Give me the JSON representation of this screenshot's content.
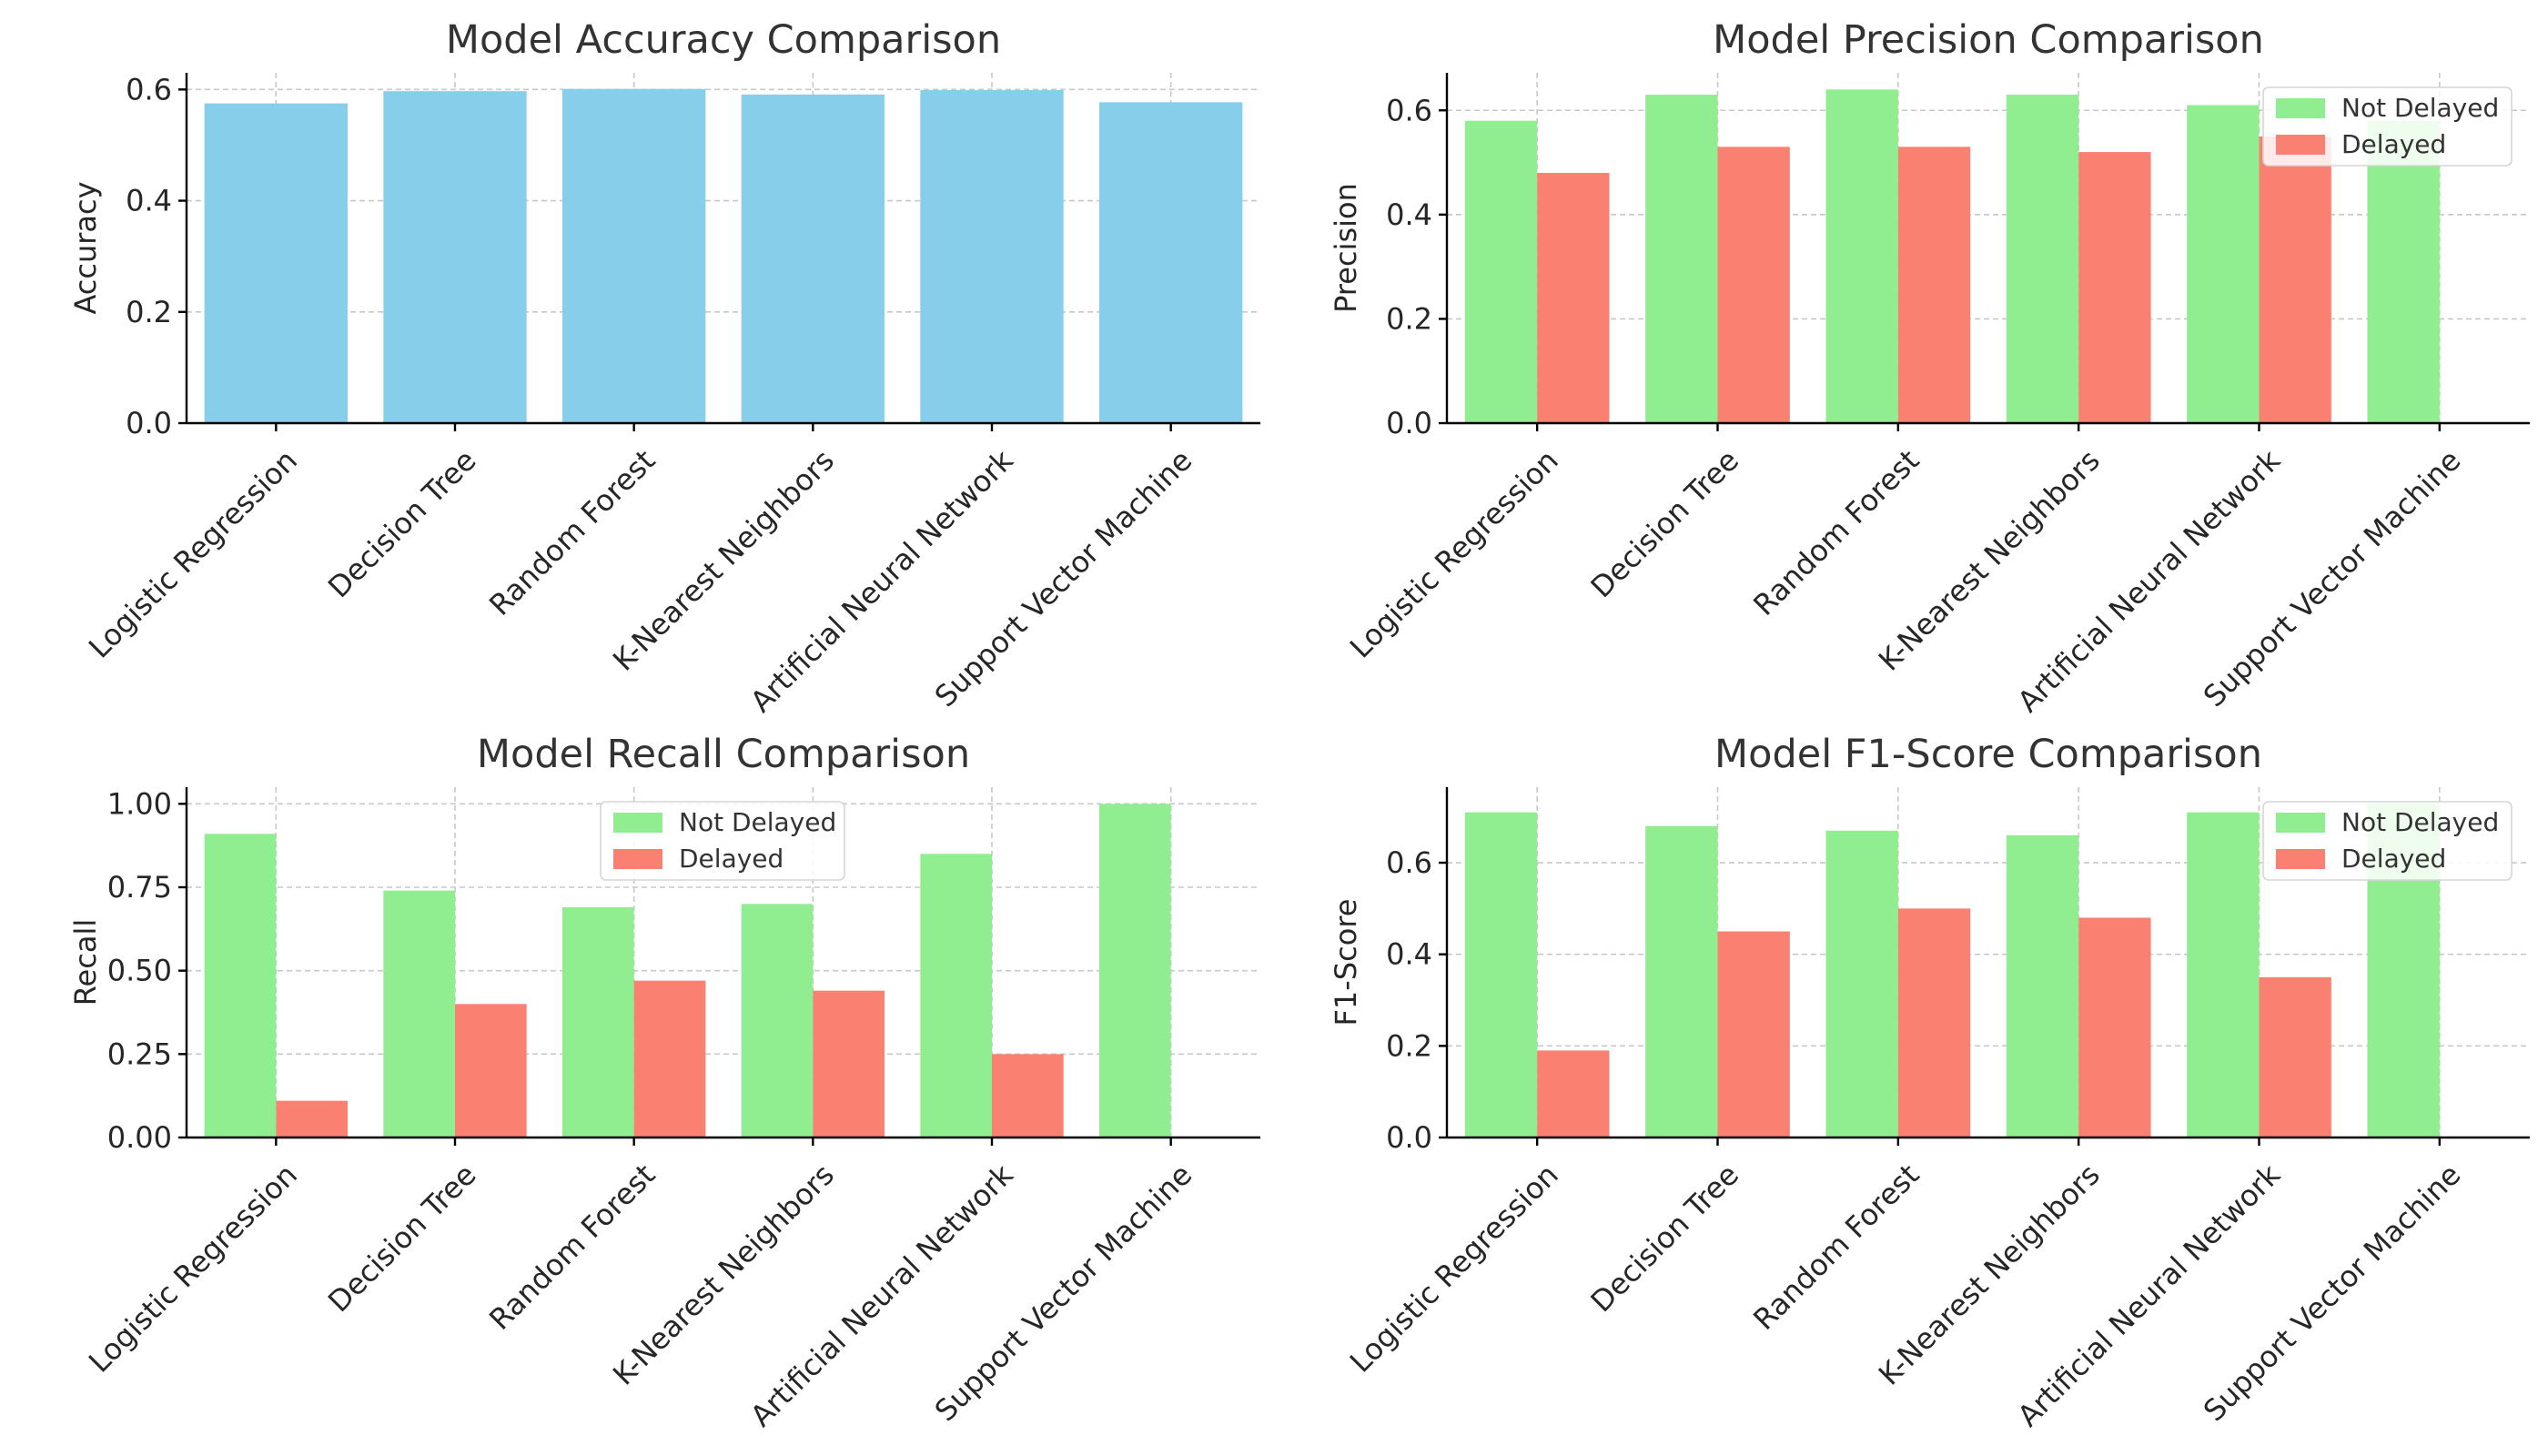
{
  "figure": {
    "colors": {
      "accuracy": "#87ceeb",
      "not_delayed": "#90ee90",
      "delayed": "#fa8072"
    }
  },
  "chart_data": [
    {
      "type": "bar",
      "title": "Model Accuracy Comparison",
      "xlabel": "",
      "ylabel": "Accuracy",
      "ylim": [
        0,
        0.63
      ],
      "yticks": [
        0.0,
        0.2,
        0.4,
        0.6
      ],
      "ytick_labels": [
        "0.0",
        "0.2",
        "0.4",
        "0.6"
      ],
      "categories": [
        "Logistic Regression",
        "Decision Tree",
        "Random Forest",
        "K-Nearest Neighbors",
        "Artificial Neural Network",
        "Support Vector Machine"
      ],
      "series": [
        {
          "values": [
            0.575,
            0.597,
            0.601,
            0.591,
            0.599,
            0.577
          ],
          "color": "#87ceeb"
        }
      ],
      "grid": true,
      "legend": "none"
    },
    {
      "type": "bar",
      "title": "Model Precision Comparison",
      "xlabel": "",
      "ylabel": "Precision",
      "ylim": [
        0,
        0.672
      ],
      "yticks": [
        0.0,
        0.2,
        0.4,
        0.6
      ],
      "ytick_labels": [
        "0.0",
        "0.2",
        "0.4",
        "0.6"
      ],
      "categories": [
        "Logistic Regression",
        "Decision Tree",
        "Random Forest",
        "K-Nearest Neighbors",
        "Artificial Neural Network",
        "Support Vector Machine"
      ],
      "series": [
        {
          "name": "Not Delayed",
          "values": [
            0.58,
            0.63,
            0.64,
            0.63,
            0.61,
            0.58
          ],
          "color": "#90ee90"
        },
        {
          "name": "Delayed",
          "values": [
            0.48,
            0.53,
            0.53,
            0.52,
            0.55,
            0.0
          ],
          "color": "#fa8072"
        }
      ],
      "grid": true,
      "legend": "top-right"
    },
    {
      "type": "bar",
      "title": "Model Recall Comparison",
      "xlabel": "",
      "ylabel": "Recall",
      "ylim": [
        0,
        1.05
      ],
      "yticks": [
        0.0,
        0.25,
        0.5,
        0.75,
        1.0
      ],
      "ytick_labels": [
        "0.00",
        "0.25",
        "0.50",
        "0.75",
        "1.00"
      ],
      "categories": [
        "Logistic Regression",
        "Decision Tree",
        "Random Forest",
        "K-Nearest Neighbors",
        "Artificial Neural Network",
        "Support Vector Machine"
      ],
      "series": [
        {
          "name": "Not Delayed",
          "values": [
            0.91,
            0.74,
            0.69,
            0.7,
            0.85,
            1.0
          ],
          "color": "#90ee90"
        },
        {
          "name": "Delayed",
          "values": [
            0.11,
            0.4,
            0.47,
            0.44,
            0.25,
            0.0
          ],
          "color": "#fa8072"
        }
      ],
      "grid": true,
      "legend": "top-center"
    },
    {
      "type": "bar",
      "title": "Model F1-Score Comparison",
      "xlabel": "",
      "ylabel": "F1-Score",
      "ylim": [
        0,
        0.765
      ],
      "yticks": [
        0.0,
        0.2,
        0.4,
        0.6
      ],
      "ytick_labels": [
        "0.0",
        "0.2",
        "0.4",
        "0.6"
      ],
      "categories": [
        "Logistic Regression",
        "Decision Tree",
        "Random Forest",
        "K-Nearest Neighbors",
        "Artificial Neural Network",
        "Support Vector Machine"
      ],
      "series": [
        {
          "name": "Not Delayed",
          "values": [
            0.71,
            0.68,
            0.67,
            0.66,
            0.71,
            0.73
          ],
          "color": "#90ee90"
        },
        {
          "name": "Delayed",
          "values": [
            0.19,
            0.45,
            0.5,
            0.48,
            0.35,
            0.0
          ],
          "color": "#fa8072"
        }
      ],
      "grid": true,
      "legend": "top-right"
    }
  ]
}
